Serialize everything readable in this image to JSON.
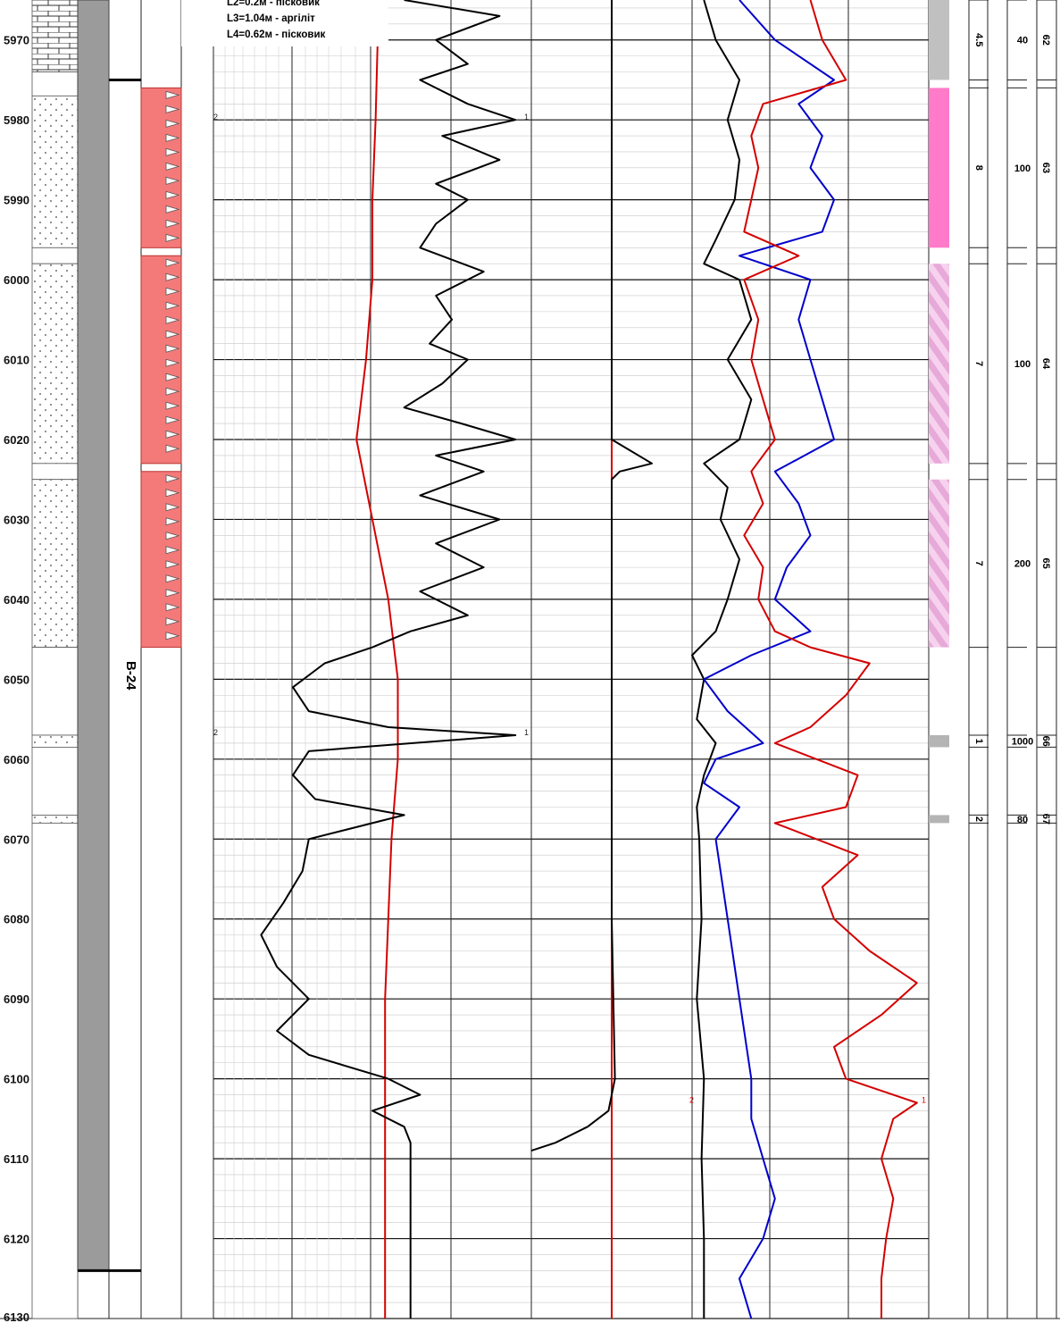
{
  "chart_data": {
    "type": "line",
    "depth_range": [
      5965,
      6130
    ],
    "depth_ticks": [
      5970,
      5980,
      5990,
      6000,
      6010,
      6020,
      6030,
      6040,
      6050,
      6060,
      6070,
      6080,
      6090,
      6100,
      6110,
      6120,
      6130
    ],
    "well_label": "B-24",
    "notes": [
      "L2=0.2м - пісковик",
      "L3=1.04м - аргіліт",
      "L4=0.62м - пісковик"
    ],
    "lithology": [
      {
        "top": 5965,
        "bottom": 5974,
        "type": "carbonate"
      },
      {
        "top": 5974,
        "bottom": 5977,
        "type": "shale"
      },
      {
        "top": 5977,
        "bottom": 5996,
        "type": "sandstone"
      },
      {
        "top": 5996,
        "bottom": 5998,
        "type": "shale"
      },
      {
        "top": 5998,
        "bottom": 6023,
        "type": "sandstone"
      },
      {
        "top": 6023,
        "bottom": 6025,
        "type": "shale"
      },
      {
        "top": 6025,
        "bottom": 6046,
        "type": "sandstone"
      },
      {
        "top": 6046,
        "bottom": 6057,
        "type": "shale"
      },
      {
        "top": 6057,
        "bottom": 6058.5,
        "type": "sandstone"
      },
      {
        "top": 6058.5,
        "bottom": 6067,
        "type": "shale"
      },
      {
        "top": 6067,
        "bottom": 6068,
        "type": "sandstone"
      },
      {
        "top": 6068,
        "bottom": 6130,
        "type": "shale"
      }
    ],
    "casing": {
      "top": 5975,
      "bottom": 6124
    },
    "perforations": [
      {
        "top": 5976,
        "bottom": 5996
      },
      {
        "top": 5997,
        "bottom": 6023
      },
      {
        "top": 6024,
        "bottom": 6046
      }
    ],
    "zones": [
      {
        "top": 5965,
        "bottom": 5975,
        "color": "#c0c0c0",
        "pattern": "solid",
        "thickness": "4.5",
        "value": "40",
        "num": "62"
      },
      {
        "top": 5976,
        "bottom": 5996,
        "color": "#ff7ac8",
        "pattern": "solid",
        "thickness": "8",
        "value": "100",
        "num": "63"
      },
      {
        "top": 5998,
        "bottom": 6023,
        "color": "#e6a9d8",
        "pattern": "hatch",
        "thickness": "7",
        "value": "100",
        "num": "64"
      },
      {
        "top": 6025,
        "bottom": 6046,
        "color": "#e6a9d8",
        "pattern": "hatch",
        "thickness": "7",
        "value": "200",
        "num": "65"
      },
      {
        "top": 6057,
        "bottom": 6058.5,
        "color": "#b4b4b4",
        "pattern": "solid",
        "thickness": "1",
        "value": "1000",
        "num": "66"
      },
      {
        "top": 6067,
        "bottom": 6068,
        "color": "#b4b4b4",
        "pattern": "solid",
        "thickness": "2",
        "value": "80",
        "num": "67"
      }
    ],
    "curve_markers": [
      {
        "depth": 5980,
        "left": "2",
        "right": "1"
      },
      {
        "depth": 6057,
        "left": "2",
        "right": "1"
      },
      {
        "depth": 6103,
        "left": "2",
        "right": "1"
      }
    ],
    "series": [
      {
        "track": 1,
        "color": "#d40000",
        "depth": [
          5965,
          5980,
          5990,
          6000,
          6010,
          6020,
          6030,
          6040,
          6050,
          6060,
          6070,
          6080,
          6090,
          6100,
          6110,
          6120,
          6130
        ],
        "values": [
          0.52,
          0.51,
          0.5,
          0.5,
          0.48,
          0.45,
          0.5,
          0.55,
          0.58,
          0.58,
          0.56,
          0.55,
          0.54,
          0.54,
          0.54,
          0.54,
          0.54
        ]
      },
      {
        "track": 1,
        "color": "#000000",
        "depth": [
          5965,
          5967,
          5970,
          5973,
          5975,
          5978,
          5980,
          5982,
          5985,
          5988,
          5990,
          5993,
          5996,
          5999,
          6002,
          6005,
          6008,
          6010,
          6013,
          6016,
          6018,
          6020,
          6022,
          6024,
          6027,
          6030,
          6033,
          6036,
          6039,
          6042,
          6044,
          6046,
          6048,
          6051,
          6054,
          6056,
          6057,
          6059,
          6062,
          6065,
          6067,
          6070,
          6074,
          6078,
          6082,
          6086,
          6090,
          6094,
          6097,
          6100,
          6102,
          6104,
          6106,
          6108,
          6110,
          6115,
          6120,
          6125,
          6130
        ],
        "values": [
          0.6,
          0.9,
          0.7,
          0.8,
          0.65,
          0.8,
          0.95,
          0.72,
          0.9,
          0.7,
          0.8,
          0.7,
          0.65,
          0.85,
          0.7,
          0.75,
          0.68,
          0.8,
          0.72,
          0.6,
          0.78,
          0.95,
          0.7,
          0.85,
          0.65,
          0.9,
          0.7,
          0.85,
          0.65,
          0.8,
          0.62,
          0.5,
          0.35,
          0.25,
          0.3,
          0.55,
          0.95,
          0.3,
          0.25,
          0.32,
          0.6,
          0.3,
          0.28,
          0.22,
          0.15,
          0.2,
          0.3,
          0.2,
          0.3,
          0.55,
          0.65,
          0.5,
          0.6,
          0.62,
          0.62,
          0.62,
          0.62,
          0.62,
          0.62
        ]
      },
      {
        "track": 2,
        "color": "#d40000",
        "depth": [
          5965,
          6130
        ],
        "values": [
          0.5,
          0.5
        ]
      },
      {
        "track": 2,
        "color": "#000000",
        "depth": [
          5965,
          5980,
          6000,
          6020,
          6023,
          6024,
          6025,
          6040,
          6060,
          6080,
          6100,
          6104,
          6106,
          6108,
          6109
        ],
        "values": [
          0.5,
          0.5,
          0.5,
          0.5,
          0.75,
          0.55,
          0.5,
          0.5,
          0.5,
          0.5,
          0.52,
          0.48,
          0.35,
          0.15,
          0.0
        ]
      },
      {
        "track": 3,
        "color": "#000000",
        "depth": [
          5965,
          5970,
          5975,
          5980,
          5985,
          5990,
          5995,
          5998,
          6000,
          6005,
          6010,
          6015,
          6020,
          6023,
          6026,
          6030,
          6035,
          6040,
          6044,
          6047,
          6050,
          6055,
          6058,
          6062,
          6066,
          6070,
          6080,
          6090,
          6100,
          6110,
          6120,
          6130
        ],
        "values": [
          0.05,
          0.1,
          0.2,
          0.15,
          0.2,
          0.18,
          0.1,
          0.05,
          0.2,
          0.25,
          0.15,
          0.25,
          0.2,
          0.05,
          0.15,
          0.12,
          0.2,
          0.15,
          0.1,
          0.0,
          0.05,
          0.02,
          0.1,
          0.05,
          0.02,
          0.03,
          0.04,
          0.02,
          0.05,
          0.04,
          0.05,
          0.05
        ]
      },
      {
        "track": 3,
        "color": "#0000cc",
        "depth": [
          5965,
          5970,
          5975,
          5978,
          5982,
          5986,
          5990,
          5994,
          5997,
          6000,
          6005,
          6010,
          6015,
          6020,
          6024,
          6028,
          6032,
          6036,
          6040,
          6044,
          6047,
          6050,
          6054,
          6058,
          6060,
          6063,
          6066,
          6070,
          6080,
          6090,
          6100,
          6105,
          6110,
          6115,
          6120,
          6125,
          6130
        ],
        "values": [
          0.2,
          0.35,
          0.6,
          0.45,
          0.55,
          0.5,
          0.6,
          0.55,
          0.2,
          0.5,
          0.45,
          0.5,
          0.55,
          0.6,
          0.35,
          0.45,
          0.5,
          0.4,
          0.35,
          0.5,
          0.25,
          0.05,
          0.15,
          0.3,
          0.1,
          0.05,
          0.2,
          0.1,
          0.15,
          0.2,
          0.25,
          0.25,
          0.3,
          0.35,
          0.3,
          0.2,
          0.25
        ]
      },
      {
        "track": 3,
        "color": "#d40000",
        "depth": [
          5965,
          5970,
          5975,
          5978,
          5982,
          5986,
          5990,
          5994,
          5997,
          6000,
          6005,
          6010,
          6015,
          6020,
          6024,
          6028,
          6032,
          6036,
          6040,
          6044,
          6046,
          6048,
          6052,
          6056,
          6058,
          6062,
          6066,
          6068,
          6072,
          6076,
          6080,
          6084,
          6088,
          6092,
          6096,
          6100,
          6103,
          6105,
          6110,
          6115,
          6120,
          6125,
          6130
        ],
        "values": [
          0.5,
          0.55,
          0.65,
          0.3,
          0.25,
          0.28,
          0.25,
          0.22,
          0.45,
          0.22,
          0.28,
          0.25,
          0.3,
          0.35,
          0.25,
          0.3,
          0.22,
          0.3,
          0.28,
          0.35,
          0.5,
          0.75,
          0.65,
          0.5,
          0.35,
          0.7,
          0.65,
          0.35,
          0.7,
          0.55,
          0.6,
          0.75,
          0.95,
          0.8,
          0.6,
          0.65,
          0.95,
          0.85,
          0.8,
          0.85,
          0.82,
          0.8,
          0.8
        ]
      }
    ]
  }
}
